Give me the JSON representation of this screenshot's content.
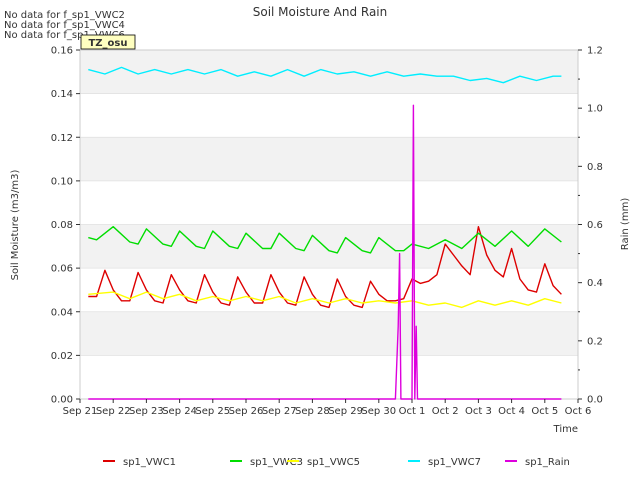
{
  "chart_data": {
    "type": "line",
    "title": "Soil Moisture And Rain",
    "xlabel": "Time",
    "ylabel": "Soil Moisture (m3/m3)",
    "y2label": "Rain (mm)",
    "no_data_notes": [
      "No data for f_sp1_VWC2",
      "No data for f_sp1_VWC4",
      "No data for f_sp1_VWC6"
    ],
    "site_label": "TZ_osu",
    "x_ticks": [
      "Sep 21",
      "Sep 22",
      "Sep 23",
      "Sep 24",
      "Sep 25",
      "Sep 26",
      "Sep 27",
      "Sep 28",
      "Sep 29",
      "Sep 30",
      "Oct 1",
      "Oct 2",
      "Oct 3",
      "Oct 4",
      "Oct 5",
      "Oct 6"
    ],
    "xlim": [
      "Sep 21",
      "Oct 6"
    ],
    "ylim": [
      0.0,
      0.16
    ],
    "y_ticks": [
      "0.00",
      "0.02",
      "0.04",
      "0.06",
      "0.08",
      "0.10",
      "0.12",
      "0.14",
      "0.16"
    ],
    "y2lim": [
      0.0,
      1.2
    ],
    "y2_ticks": [
      "0.0",
      "0.2",
      "0.4",
      "0.6",
      "0.8",
      "1.0",
      "1.2"
    ],
    "legend_position": "bottom",
    "grid": "alternating horizontal bands",
    "series": [
      {
        "name": "sp1_VWC1",
        "color": "#dd0000",
        "axis": "left",
        "x": [
          "Sep 21 06:00",
          "Sep 21 12:00",
          "Sep 21 18:00",
          "Sep 22 00:00",
          "Sep 22 06:00",
          "Sep 22 12:00",
          "Sep 22 18:00",
          "Sep 23 00:00",
          "Sep 23 06:00",
          "Sep 23 12:00",
          "Sep 23 18:00",
          "Sep 24 00:00",
          "Sep 24 06:00",
          "Sep 24 12:00",
          "Sep 24 18:00",
          "Sep 25 00:00",
          "Sep 25 06:00",
          "Sep 25 12:00",
          "Sep 25 18:00",
          "Sep 26 00:00",
          "Sep 26 06:00",
          "Sep 26 12:00",
          "Sep 26 18:00",
          "Sep 27 00:00",
          "Sep 27 06:00",
          "Sep 27 12:00",
          "Sep 27 18:00",
          "Sep 28 00:00",
          "Sep 28 06:00",
          "Sep 28 12:00",
          "Sep 28 18:00",
          "Sep 29 00:00",
          "Sep 29 06:00",
          "Sep 29 12:00",
          "Sep 29 18:00",
          "Sep 30 00:00",
          "Sep 30 06:00",
          "Sep 30 12:00",
          "Sep 30 18:00",
          "Oct 1 00:00",
          "Oct 1 06:00",
          "Oct 1 12:00",
          "Oct 1 18:00",
          "Oct 2 00:00",
          "Oct 2 06:00",
          "Oct 2 12:00",
          "Oct 2 18:00",
          "Oct 3 00:00",
          "Oct 3 06:00",
          "Oct 3 12:00",
          "Oct 3 18:00",
          "Oct 4 00:00",
          "Oct 4 06:00",
          "Oct 4 12:00",
          "Oct 4 18:00",
          "Oct 5 00:00",
          "Oct 5 06:00",
          "Oct 5 12:00"
        ],
        "y": [
          0.047,
          0.047,
          0.059,
          0.05,
          0.045,
          0.045,
          0.058,
          0.05,
          0.045,
          0.044,
          0.057,
          0.05,
          0.045,
          0.044,
          0.057,
          0.049,
          0.044,
          0.043,
          0.056,
          0.049,
          0.044,
          0.044,
          0.057,
          0.049,
          0.044,
          0.043,
          0.056,
          0.048,
          0.043,
          0.042,
          0.055,
          0.047,
          0.043,
          0.042,
          0.054,
          0.048,
          0.045,
          0.045,
          0.046,
          0.055,
          0.053,
          0.054,
          0.057,
          0.071,
          0.066,
          0.061,
          0.057,
          0.079,
          0.066,
          0.059,
          0.056,
          0.069,
          0.055,
          0.05,
          0.049,
          0.062,
          0.052,
          0.048
        ]
      },
      {
        "name": "sp1_VWC3",
        "color": "#00dd00",
        "axis": "left",
        "x": [
          "Sep 21 06:00",
          "Sep 21 12:00",
          "Sep 22 00:00",
          "Sep 22 12:00",
          "Sep 22 18:00",
          "Sep 23 00:00",
          "Sep 23 12:00",
          "Sep 23 18:00",
          "Sep 24 00:00",
          "Sep 24 12:00",
          "Sep 24 18:00",
          "Sep 25 00:00",
          "Sep 25 12:00",
          "Sep 25 18:00",
          "Sep 26 00:00",
          "Sep 26 12:00",
          "Sep 26 18:00",
          "Sep 27 00:00",
          "Sep 27 12:00",
          "Sep 27 18:00",
          "Sep 28 00:00",
          "Sep 28 12:00",
          "Sep 28 18:00",
          "Sep 29 00:00",
          "Sep 29 12:00",
          "Sep 29 18:00",
          "Sep 30 00:00",
          "Sep 30 12:00",
          "Sep 30 18:00",
          "Oct 1 00:00",
          "Oct 1 12:00",
          "Oct 2 00:00",
          "Oct 2 12:00",
          "Oct 3 00:00",
          "Oct 3 12:00",
          "Oct 4 00:00",
          "Oct 4 12:00",
          "Oct 5 00:00",
          "Oct 5 12:00"
        ],
        "y": [
          0.074,
          0.073,
          0.079,
          0.072,
          0.071,
          0.078,
          0.071,
          0.07,
          0.077,
          0.07,
          0.069,
          0.077,
          0.07,
          0.069,
          0.076,
          0.069,
          0.069,
          0.076,
          0.069,
          0.068,
          0.075,
          0.068,
          0.067,
          0.074,
          0.068,
          0.067,
          0.074,
          0.068,
          0.068,
          0.071,
          0.069,
          0.073,
          0.069,
          0.076,
          0.07,
          0.077,
          0.07,
          0.078,
          0.072
        ]
      },
      {
        "name": "sp1_VWC5",
        "color": "#ffff00",
        "axis": "left",
        "x": [
          "Sep 21 06:00",
          "Sep 22 00:00",
          "Sep 22 12:00",
          "Sep 23 00:00",
          "Sep 23 12:00",
          "Sep 24 00:00",
          "Sep 24 12:00",
          "Sep 25 00:00",
          "Sep 25 12:00",
          "Sep 26 00:00",
          "Sep 26 12:00",
          "Sep 27 00:00",
          "Sep 27 12:00",
          "Sep 28 00:00",
          "Sep 28 12:00",
          "Sep 29 00:00",
          "Sep 29 12:00",
          "Sep 30 00:00",
          "Sep 30 12:00",
          "Oct 1 00:00",
          "Oct 1 12:00",
          "Oct 2 00:00",
          "Oct 2 12:00",
          "Oct 3 00:00",
          "Oct 3 12:00",
          "Oct 4 00:00",
          "Oct 4 12:00",
          "Oct 5 00:00",
          "Oct 5 12:00"
        ],
        "y": [
          0.048,
          0.049,
          0.046,
          0.049,
          0.046,
          0.048,
          0.045,
          0.047,
          0.045,
          0.047,
          0.045,
          0.047,
          0.044,
          0.046,
          0.044,
          0.046,
          0.044,
          0.045,
          0.044,
          0.045,
          0.043,
          0.044,
          0.042,
          0.045,
          0.043,
          0.045,
          0.043,
          0.046,
          0.044
        ]
      },
      {
        "name": "sp1_VWC7",
        "color": "#00eeff",
        "axis": "left",
        "x": [
          "Sep 21 06:00",
          "Sep 21 18:00",
          "Sep 22 06:00",
          "Sep 22 18:00",
          "Sep 23 06:00",
          "Sep 23 18:00",
          "Sep 24 06:00",
          "Sep 24 18:00",
          "Sep 25 06:00",
          "Sep 25 18:00",
          "Sep 26 06:00",
          "Sep 26 18:00",
          "Sep 27 06:00",
          "Sep 27 18:00",
          "Sep 28 06:00",
          "Sep 28 18:00",
          "Sep 29 06:00",
          "Sep 29 18:00",
          "Sep 30 06:00",
          "Sep 30 18:00",
          "Oct 1 06:00",
          "Oct 1 18:00",
          "Oct 2 06:00",
          "Oct 2 18:00",
          "Oct 3 06:00",
          "Oct 3 18:00",
          "Oct 4 06:00",
          "Oct 4 18:00",
          "Oct 5 06:00",
          "Oct 5 12:00"
        ],
        "y": [
          0.151,
          0.149,
          0.152,
          0.149,
          0.151,
          0.149,
          0.151,
          0.149,
          0.151,
          0.148,
          0.15,
          0.148,
          0.151,
          0.148,
          0.151,
          0.149,
          0.15,
          0.148,
          0.15,
          0.148,
          0.149,
          0.148,
          0.148,
          0.146,
          0.147,
          0.145,
          0.148,
          0.146,
          0.148,
          0.148
        ]
      },
      {
        "name": "sp1_Rain",
        "color": "#dd00dd",
        "axis": "right",
        "x": [
          "Sep 21 06:00",
          "Sep 30 12:00",
          "Sep 30 14:00",
          "Sep 30 15:00",
          "Sep 30 16:00",
          "Sep 30 18:00",
          "Oct 1 00:00",
          "Oct 1 01:00",
          "Oct 1 02:00",
          "Oct 1 03:00",
          "Oct 1 04:00",
          "Oct 1 06:00",
          "Oct 5 12:00"
        ],
        "y": [
          0.0,
          0.0,
          0.25,
          0.5,
          0.0,
          0.0,
          0.0,
          1.01,
          0.0,
          0.25,
          0.0,
          0.0,
          0.0
        ]
      }
    ]
  }
}
